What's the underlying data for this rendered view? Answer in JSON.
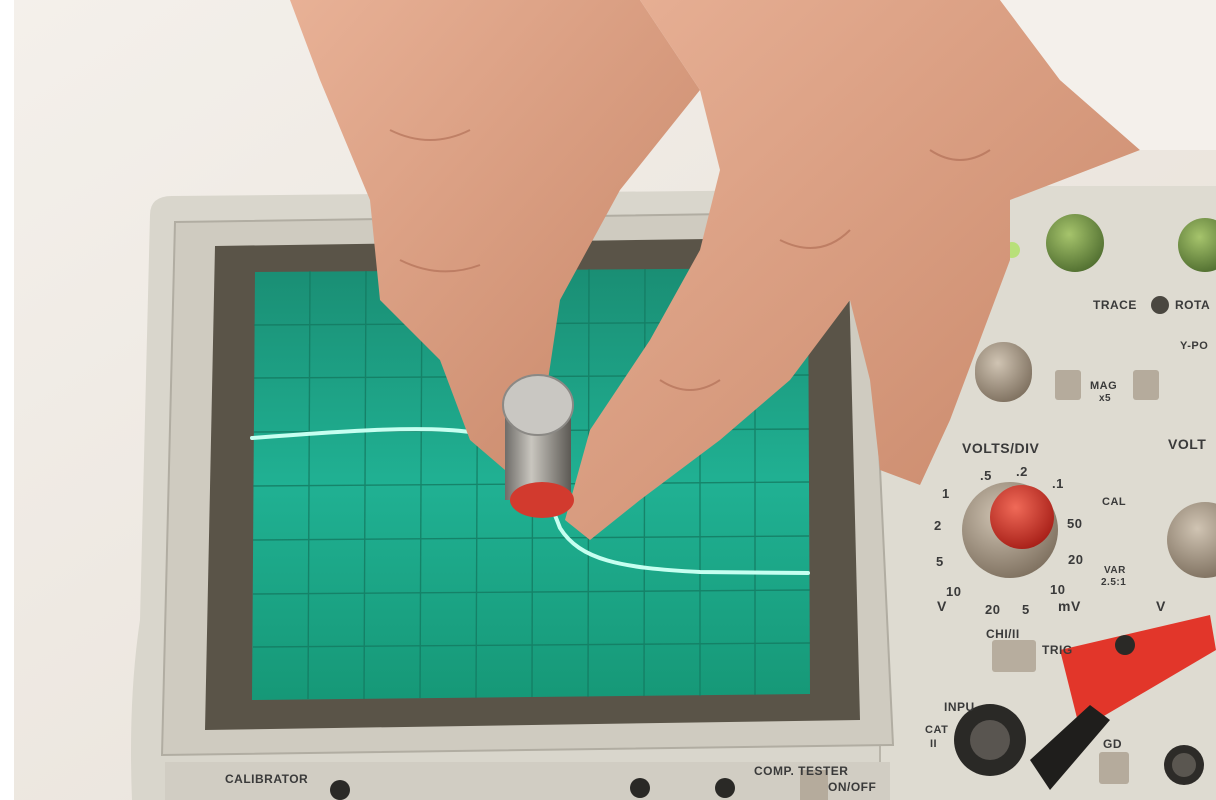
{
  "scene": "hand holding a cylindrical magnet over an analog oscilloscope screen showing a displaced trace",
  "colors": {
    "background": "#f1ece6",
    "scope_body": "#d8d5cc",
    "screen": "#1fae8f",
    "trace": "#b9ffe9",
    "skin": "#dda386",
    "magnet_cap": "#d23a2e",
    "probe": "#e2362a"
  },
  "panel_labels": {
    "calibrator": "CALIBRATOR",
    "comp_tester": "COMP. TESTER",
    "on_off": "ON/OFF",
    "volts_div_ch1": "VOLTS/DIV",
    "volts_div_ch2": "VOLT",
    "trace_rot": "TRACE",
    "rot": "ROTA",
    "mag": "MAG",
    "x5": "x5",
    "y_pos": "Y-PO",
    "cal": "CAL",
    "var": "VAR",
    "var_ratio": "2.5:1",
    "ch1_ii": "CHI/II",
    "trig": "TRIG",
    "input": "INPU",
    "cat": "CAT",
    "cat_ii": "II",
    "gd": "GD",
    "v_left": "V",
    "mv": "mV",
    "v_right": "V",
    "range_ticks": [
      "1",
      "2",
      ".5",
      ".2",
      ".1",
      "50",
      "20",
      "10",
      "5",
      "20",
      "10",
      "5"
    ]
  }
}
